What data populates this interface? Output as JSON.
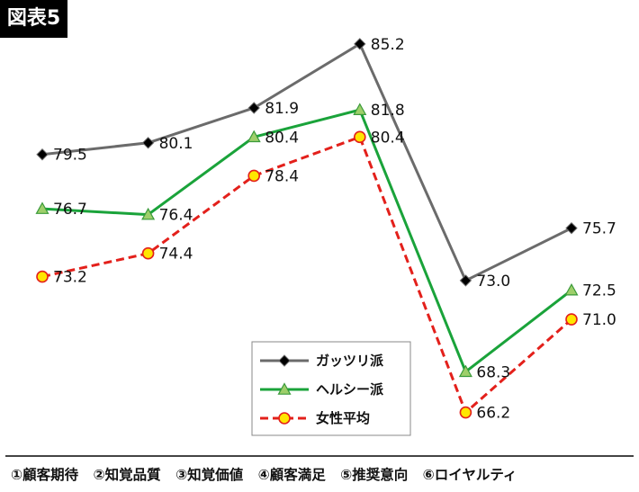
{
  "badge": "図表5",
  "chart_data": {
    "type": "line",
    "categories": [
      "①顧客期待",
      "②知覚品質",
      "③知覚価値",
      "④顧客満足",
      "⑤推奨意向",
      "⑥ロイヤルティ"
    ],
    "ylim": [
      64,
      87
    ],
    "grid": false,
    "legend_position": "bottom-center",
    "series": [
      {
        "name": "ガッツリ派",
        "values": [
          79.5,
          80.1,
          81.9,
          85.2,
          73.0,
          75.7
        ],
        "labels": [
          "79.5",
          "80.1",
          "81.9",
          "85.2",
          "73.0",
          "75.7"
        ],
        "color": "#6b6b6b",
        "marker": "diamond",
        "marker_color": "#000000",
        "dash": "solid"
      },
      {
        "name": "ヘルシー派",
        "values": [
          76.7,
          76.4,
          80.4,
          81.8,
          68.3,
          72.5
        ],
        "labels": [
          "76.7",
          "76.4",
          "80.4",
          "81.8",
          "68.3",
          "72.5"
        ],
        "color": "#1aa33a",
        "marker": "triangle",
        "marker_color": "#9ecf6a",
        "dash": "solid"
      },
      {
        "name": "女性平均",
        "values": [
          73.2,
          74.4,
          78.4,
          80.4,
          66.2,
          71.0
        ],
        "labels": [
          "73.2",
          "74.4",
          "78.4",
          "80.4",
          "66.2",
          "71.0"
        ],
        "color": "#e3201b",
        "marker": "circle",
        "marker_color": "#ffe600",
        "dash": "dashed"
      }
    ]
  }
}
